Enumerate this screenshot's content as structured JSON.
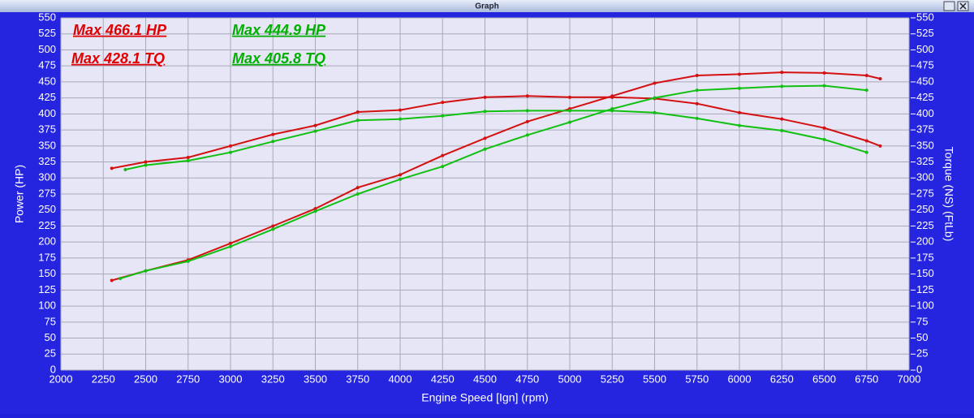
{
  "window": {
    "title": "Graph"
  },
  "chart_data": {
    "type": "line",
    "x_label": "Engine Speed [Ign] (rpm)",
    "y_label": "Power (HP)",
    "y2_label": "Torque (NS) (FtLb)",
    "xlim": [
      2000,
      7000
    ],
    "xticks": [
      2000,
      2250,
      2500,
      2750,
      3000,
      3250,
      3500,
      3750,
      4000,
      4250,
      4500,
      4750,
      5000,
      5250,
      5500,
      5750,
      6000,
      6250,
      6500,
      6750,
      7000
    ],
    "ylim": [
      0,
      550
    ],
    "yticks": [
      0,
      25,
      50,
      75,
      100,
      125,
      150,
      175,
      200,
      225,
      250,
      275,
      300,
      325,
      350,
      375,
      400,
      425,
      450,
      475,
      500,
      525,
      550
    ],
    "y2lim": [
      0,
      550
    ],
    "y2ticks": [
      0,
      25,
      50,
      75,
      100,
      125,
      150,
      175,
      200,
      225,
      250,
      275,
      300,
      325,
      350,
      375,
      400,
      425,
      450,
      475,
      500,
      525,
      550
    ],
    "grid": true,
    "annotations": [
      {
        "text": "Max 466.1 HP",
        "color": "#e00000"
      },
      {
        "text": "Max 444.9 HP",
        "color": "#00b000"
      },
      {
        "text": "Max 428.1 TQ",
        "color": "#e00000"
      },
      {
        "text": "Max 405.8 TQ",
        "color": "#00b000"
      }
    ],
    "series": [
      {
        "color": "#d41010",
        "x": [
          2300,
          2500,
          2750,
          3000,
          3250,
          3500,
          3750,
          4000,
          4250,
          4500,
          4750,
          5000,
          5250,
          5500,
          5750,
          6000,
          6250,
          6500,
          6750,
          6830
        ],
        "values": [
          140,
          155,
          172,
          198,
          225,
          252,
          285,
          305,
          335,
          362,
          388,
          408,
          428,
          448,
          460,
          462,
          465,
          464,
          460,
          455
        ]
      },
      {
        "color": "#d41010",
        "axis": "y2",
        "x": [
          2300,
          2500,
          2750,
          3000,
          3250,
          3500,
          3750,
          4000,
          4250,
          4500,
          4750,
          5000,
          5250,
          5500,
          5750,
          6000,
          6250,
          6500,
          6750,
          6830
        ],
        "values": [
          315,
          325,
          332,
          350,
          368,
          382,
          403,
          406,
          418,
          426,
          428,
          426,
          426,
          424,
          416,
          402,
          392,
          378,
          358,
          350
        ]
      },
      {
        "color": "#10c010",
        "x": [
          2350,
          2500,
          2750,
          3000,
          3250,
          3500,
          3750,
          4000,
          4250,
          4500,
          4750,
          5000,
          5250,
          5500,
          5750,
          6000,
          6250,
          6500,
          6750
        ],
        "values": [
          143,
          155,
          170,
          193,
          220,
          248,
          275,
          298,
          318,
          345,
          367,
          387,
          408,
          425,
          437,
          440,
          443,
          444,
          437
        ]
      },
      {
        "color": "#10c010",
        "axis": "y2",
        "x": [
          2380,
          2500,
          2750,
          3000,
          3250,
          3500,
          3750,
          4000,
          4250,
          4500,
          4750,
          5000,
          5250,
          5500,
          5750,
          6000,
          6250,
          6500,
          6750
        ],
        "values": [
          313,
          320,
          327,
          340,
          357,
          373,
          390,
          392,
          397,
          404,
          405,
          405,
          405,
          402,
          393,
          382,
          374,
          360,
          340
        ]
      }
    ]
  }
}
